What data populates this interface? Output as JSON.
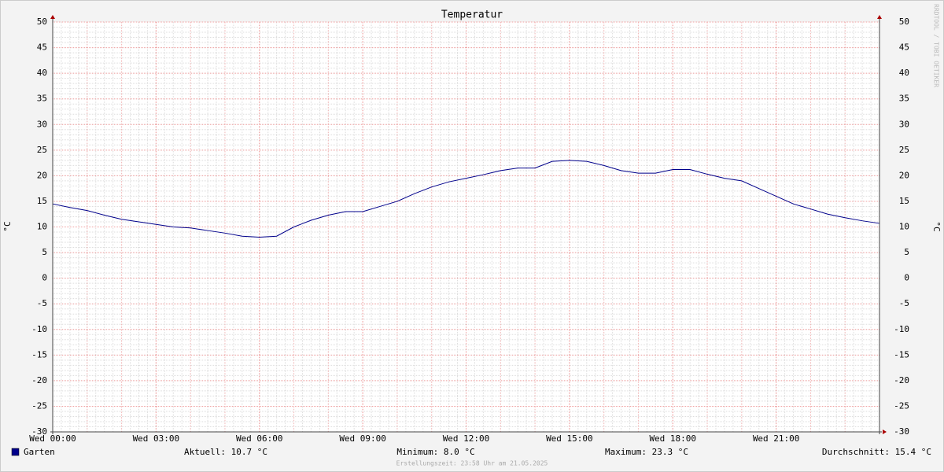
{
  "chart_data": {
    "type": "line",
    "title": "Temperatur",
    "y_label": "°C",
    "watermark": "RRDTOOL / TOBI OETIKER",
    "x": [
      0,
      0.5,
      1,
      1.5,
      2,
      2.5,
      3,
      3.5,
      4,
      4.5,
      5,
      5.5,
      6,
      6.5,
      7,
      7.5,
      8,
      8.5,
      9,
      9.5,
      10,
      10.5,
      11,
      11.5,
      12,
      12.5,
      13,
      13.5,
      14,
      14.5,
      15,
      15.5,
      16,
      16.5,
      17,
      17.5,
      18,
      18.5,
      19,
      19.5,
      20,
      20.5,
      21,
      21.5,
      22,
      22.5,
      23,
      23.5,
      24
    ],
    "series": [
      {
        "name": "Garten",
        "color": "#00008b",
        "values": [
          14.5,
          13.8,
          13.2,
          12.3,
          11.5,
          11.0,
          10.5,
          10.0,
          9.8,
          9.3,
          8.8,
          8.2,
          8.0,
          8.2,
          10.0,
          11.3,
          12.3,
          13.0,
          13.0,
          14.0,
          15.0,
          16.5,
          17.8,
          18.8,
          19.5,
          20.2,
          21.0,
          21.5,
          21.5,
          22.8,
          23.0,
          22.8,
          22.0,
          21.0,
          20.5,
          20.5,
          21.2,
          21.2,
          20.3,
          19.5,
          19.0,
          17.5,
          16.0,
          14.5,
          13.5,
          12.5,
          11.8,
          11.2,
          10.7
        ]
      }
    ],
    "xlim": [
      0,
      24
    ],
    "xticks": [
      {
        "value": 0,
        "label": "Wed 00:00"
      },
      {
        "value": 3,
        "label": "Wed 03:00"
      },
      {
        "value": 6,
        "label": "Wed 06:00"
      },
      {
        "value": 9,
        "label": "Wed 09:00"
      },
      {
        "value": 12,
        "label": "Wed 12:00"
      },
      {
        "value": 15,
        "label": "Wed 15:00"
      },
      {
        "value": 18,
        "label": "Wed 18:00"
      },
      {
        "value": 21,
        "label": "Wed 21:00"
      }
    ],
    "ylim": [
      -30,
      50
    ],
    "yticks": [
      -30,
      -25,
      -20,
      -15,
      -10,
      -5,
      0,
      5,
      10,
      15,
      20,
      25,
      30,
      35,
      40,
      45,
      50
    ],
    "grid": true,
    "stats": [
      "Aktuell: 10.7 °C",
      "Minimum: 8.0 °C",
      "Maximum: 23.3 °C",
      "Durchschnitt: 15.4 °C"
    ],
    "footer": "Erstellungszeit: 23:58 Uhr am 21.05.2025"
  }
}
